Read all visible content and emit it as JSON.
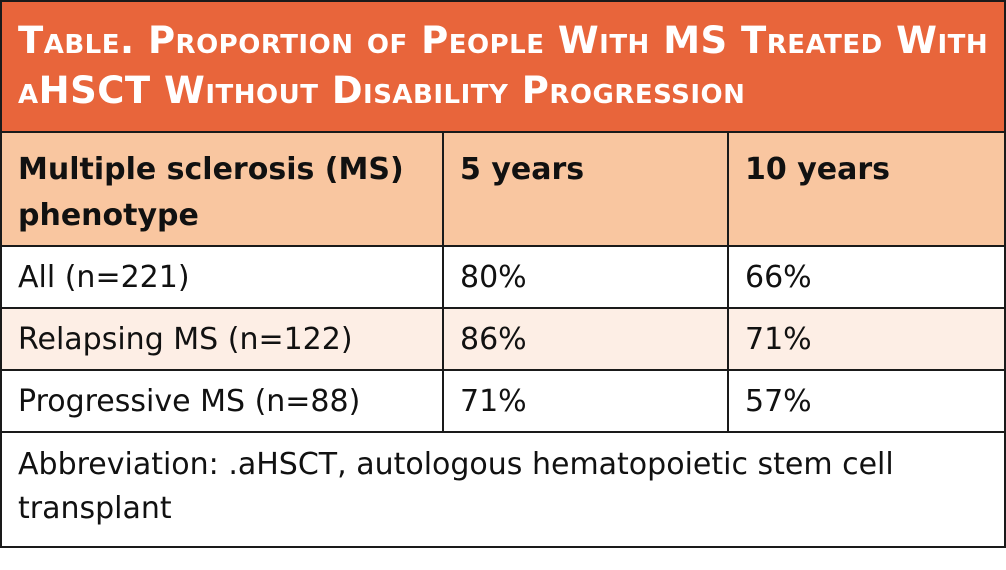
{
  "title": "Table. Proportion of People With MS Treated With aHSCT Without Disability Progression",
  "colors": {
    "title_bg": "#E8653B",
    "header_bg": "#F9C6A0",
    "alt_row_bg": "#FDEEE5"
  },
  "columns": [
    "Multiple sclerosis (MS) phenotype",
    "5 years",
    "10 years"
  ],
  "rows": [
    [
      "All (n=221)",
      "80%",
      "66%"
    ],
    [
      "Relapsing MS (n=122)",
      "86%",
      "71%"
    ],
    [
      "Progressive MS (n=88)",
      "71%",
      "57%"
    ]
  ],
  "footnote": "Abbreviation: .aHSCT, autologous hematopoietic stem cell transplant"
}
